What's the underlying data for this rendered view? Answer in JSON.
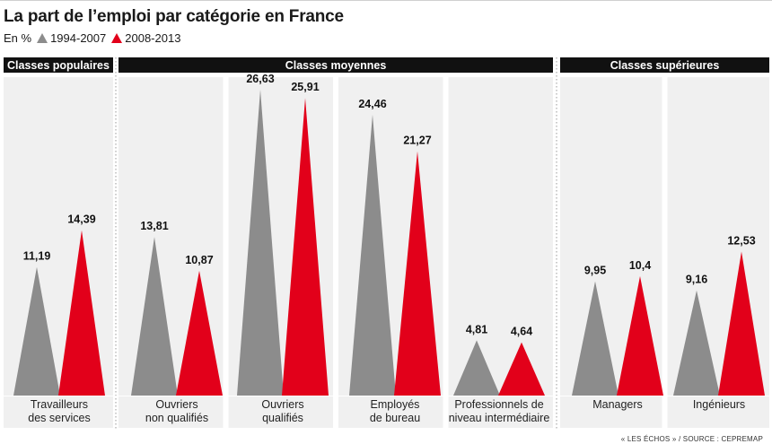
{
  "title": "La part de l’emploi par catégorie en France",
  "unit": "En %",
  "legend": [
    {
      "label": "1994-2007",
      "color": "#8c8c8c"
    },
    {
      "label": "2008-2013",
      "color": "#e2001a"
    }
  ],
  "groups": [
    {
      "label": "Classes populaires",
      "header_color": "#111111"
    },
    {
      "label": "Classes moyennes",
      "header_color": "#111111"
    },
    {
      "label": "Classes supérieures",
      "header_color": "#111111"
    }
  ],
  "source": "« LES ÉCHOS » / SOURCE : CEPREMAP",
  "chart_data": {
    "type": "bar",
    "title": "La part de l’emploi par catégorie en France",
    "unit": "En %",
    "categories": [
      [
        "Travailleurs",
        "des services"
      ],
      [
        "Ouvriers",
        "non qualifiés"
      ],
      [
        "Ouvriers",
        "qualifiés"
      ],
      [
        "Employés",
        "de bureau"
      ],
      [
        "Professionnels de",
        "niveau intermédiaire"
      ],
      [
        "Managers"
      ],
      [
        "Ingénieurs"
      ]
    ],
    "series": [
      {
        "name": "1994-2007",
        "color": "#8c8c8c",
        "values": [
          11.19,
          13.81,
          26.63,
          24.46,
          4.81,
          9.95,
          9.16
        ],
        "labels": [
          "11,19",
          "13,81",
          "26,63",
          "24,46",
          "4,81",
          "9,95",
          "9,16"
        ]
      },
      {
        "name": "2008-2013",
        "color": "#e2001a",
        "values": [
          14.39,
          10.87,
          25.91,
          21.27,
          4.64,
          10.4,
          12.53
        ],
        "labels": [
          "14,39",
          "10,87",
          "25,91",
          "21,27",
          "4,64",
          "10,4",
          "12,53"
        ]
      }
    ],
    "ylim": [
      0,
      26.63
    ],
    "grid": false
  }
}
